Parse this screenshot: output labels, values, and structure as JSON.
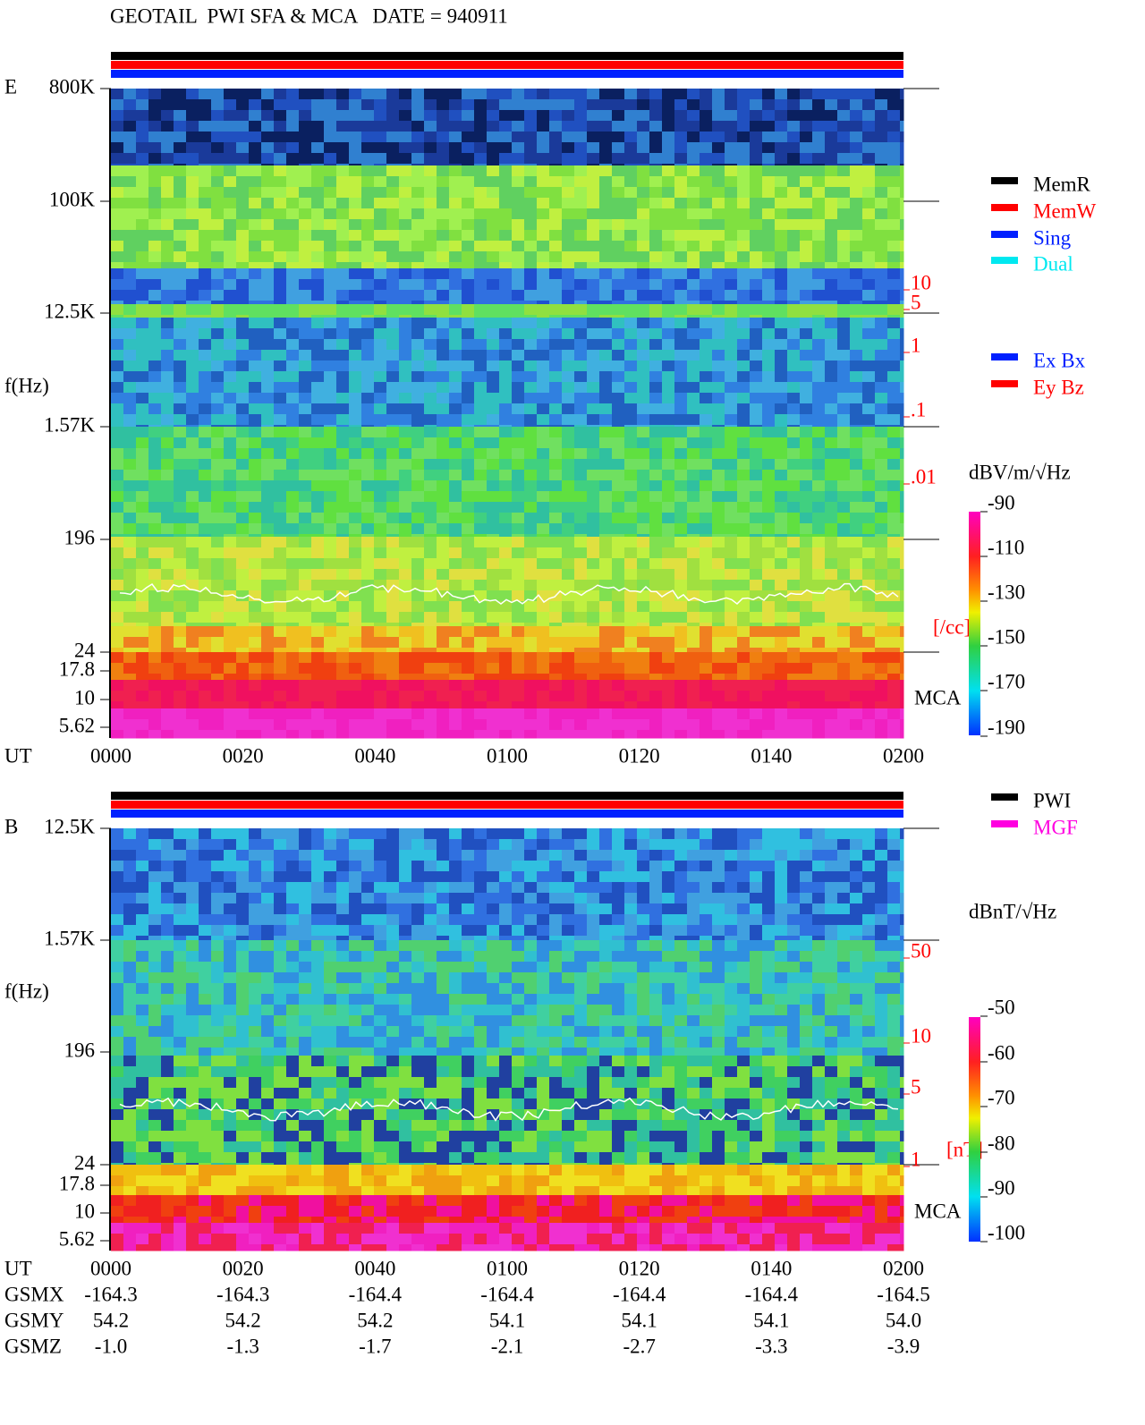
{
  "header": {
    "title": "GEOTAIL  PWI SFA & MCA   DATE = 940911"
  },
  "panels": [
    {
      "label": "E",
      "freq_ticks": [
        "800K",
        "100K",
        "12.5K",
        "1.57K",
        "196",
        "24",
        "17.8",
        "10",
        "5.62"
      ],
      "freq_axis_label": "f(Hz)",
      "time_axis_label": "UT",
      "time_ticks": [
        "0000",
        "0020",
        "0040",
        "0100",
        "0120",
        "0140",
        "0200"
      ],
      "side_ticks": [
        "10",
        "5",
        "1",
        ".1",
        ".01"
      ],
      "side_unit": "[/cc]",
      "mca_label": "MCA",
      "legend": [
        "MemR",
        "MemW",
        "Sing",
        "Dual"
      ],
      "legend2": [
        "Ex Bx",
        "Ey Bz"
      ],
      "colorbar_label": "dBV/m/√Hz",
      "colorbar_ticks": [
        "-90",
        "-110",
        "-130",
        "-150",
        "-170",
        "-190"
      ]
    },
    {
      "label": "B",
      "freq_ticks": [
        "12.5K",
        "1.57K",
        "196",
        "24",
        "17.8",
        "10",
        "5.62"
      ],
      "freq_axis_label": "f(Hz)",
      "time_axis_label": "UT",
      "time_ticks": [
        "0000",
        "0020",
        "0040",
        "0100",
        "0120",
        "0140",
        "0200"
      ],
      "side_ticks": [
        "50",
        "10",
        "5",
        "1"
      ],
      "side_unit": "[nT]",
      "mca_label": "MCA",
      "legend": [
        "PWI",
        "MGF"
      ],
      "colorbar_label": "dBnT/√Hz",
      "colorbar_ticks": [
        "-50",
        "-60",
        "-70",
        "-80",
        "-90",
        "-100"
      ]
    }
  ],
  "orbit": {
    "rows": [
      {
        "label": "GSMX",
        "values": [
          "-164.3",
          "-164.3",
          "-164.4",
          "-164.4",
          "-164.4",
          "-164.4",
          "-164.5"
        ]
      },
      {
        "label": "GSMY",
        "values": [
          "54.2",
          "54.2",
          "54.2",
          "54.1",
          "54.1",
          "54.1",
          "54.0"
        ]
      },
      {
        "label": "GSMZ",
        "values": [
          "-1.0",
          "-1.3",
          "-1.7",
          "-2.1",
          "-2.7",
          "-3.3",
          "-3.9"
        ]
      }
    ]
  }
}
